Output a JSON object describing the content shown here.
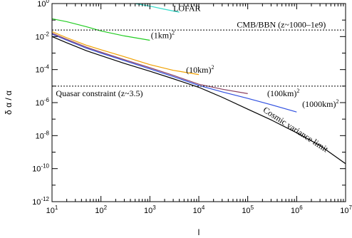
{
  "chart_data": {
    "type": "line",
    "xlabel": "l",
    "ylabel": "δ α / α",
    "xscale": "log",
    "yscale": "log",
    "xlim": [
      10,
      10000000
    ],
    "ylim": [
      1e-12,
      1
    ],
    "x_ticks": [
      {
        "value": 10,
        "mantissa": "10",
        "exponent": "1"
      },
      {
        "value": 100,
        "mantissa": "10",
        "exponent": "2"
      },
      {
        "value": 1000,
        "mantissa": "10",
        "exponent": "3"
      },
      {
        "value": 10000,
        "mantissa": "10",
        "exponent": "4"
      },
      {
        "value": 100000,
        "mantissa": "10",
        "exponent": "5"
      },
      {
        "value": 1000000,
        "mantissa": "10",
        "exponent": "6"
      },
      {
        "value": 10000000,
        "mantissa": "10",
        "exponent": "7"
      }
    ],
    "y_ticks": [
      {
        "value": 1,
        "mantissa": "10",
        "exponent": "0"
      },
      {
        "value": 0.01,
        "mantissa": "10",
        "exponent": "-2"
      },
      {
        "value": 0.0001,
        "mantissa": "10",
        "exponent": "-4"
      },
      {
        "value": 1e-06,
        "mantissa": "10",
        "exponent": "-6"
      },
      {
        "value": 1e-08,
        "mantissa": "10",
        "exponent": "-8"
      },
      {
        "value": 1e-10,
        "mantissa": "10",
        "exponent": "-10"
      },
      {
        "value": 1e-12,
        "mantissa": "10",
        "exponent": "-12"
      }
    ],
    "series": [
      {
        "color": "#000000",
        "x": [
          10,
          20,
          50,
          100,
          300,
          1000,
          3000,
          10000,
          30000,
          100000,
          300000,
          1000000,
          3000000,
          10000000
        ],
        "y": [
          0.01,
          0.0042,
          0.0014,
          0.0007,
          0.00024,
          8e-05,
          2.8e-05,
          8.5e-06,
          2.1e-06,
          4e-07,
          9e-08,
          1.5e-08,
          2.5e-09,
          2e-10
        ]
      },
      {
        "color": "#3050e0",
        "x": [
          10,
          20,
          50,
          100,
          300,
          1000,
          3000,
          10000,
          30000,
          100000,
          300000,
          1000000
        ],
        "y": [
          0.014,
          0.006,
          0.002,
          0.001,
          0.00035,
          0.00011,
          3.8e-05,
          1.1e-05,
          4.5e-06,
          1.8e-06,
          7.5e-07,
          2.7e-07
        ]
      },
      {
        "color": "#8b4060",
        "x": [
          10,
          20,
          50,
          100,
          300,
          1000,
          3000,
          10000,
          30000,
          100000
        ],
        "y": [
          0.016,
          0.0068,
          0.0023,
          0.00115,
          0.0004,
          0.00013,
          4.5e-05,
          1.3e-05,
          6.5e-06,
          3.5e-06
        ]
      },
      {
        "color": "#f0a000",
        "x": [
          10,
          20,
          50,
          100,
          300,
          1000,
          3000,
          10000
        ],
        "y": [
          0.02,
          0.0085,
          0.003,
          0.0016,
          0.0006,
          0.0002,
          9e-05,
          5e-05
        ]
      },
      {
        "color": "#22cc22",
        "x": [
          10,
          20,
          50,
          100,
          300,
          1000
        ],
        "y": [
          0.12,
          0.08,
          0.04,
          0.022,
          0.011,
          0.006
        ]
      },
      {
        "color": "#33ddcc",
        "x": [
          500,
          1000,
          2000,
          4000
        ],
        "y": [
          1,
          0.7,
          0.45,
          0.3
        ]
      }
    ],
    "hlines": [
      {
        "y": 0.025,
        "style": "dotted"
      },
      {
        "y": 1e-05,
        "style": "dotted"
      }
    ],
    "annotations": [
      {
        "id": "lofar",
        "text": "LOFAR",
        "sup": "",
        "x": 3000,
        "y": 0.35,
        "rotate": 0
      },
      {
        "id": "cmb",
        "text": "CMB/BBN (z~1000–1e9)",
        "sup": "",
        "x": 60000,
        "y": 0.035,
        "rotate": 0
      },
      {
        "id": "r1km",
        "text": "(1km)",
        "sup": "2",
        "x": 1050,
        "y": 0.008,
        "rotate": 0
      },
      {
        "id": "r10km",
        "text": "(10km)",
        "sup": "2",
        "x": 5500,
        "y": 6.5e-05,
        "rotate": 0
      },
      {
        "id": "r100km",
        "text": "(100km)",
        "sup": "2",
        "x": 250000,
        "y": 2.5e-06,
        "rotate": 0
      },
      {
        "id": "r1000km",
        "text": "(1000km)",
        "sup": "2",
        "x": 1300000,
        "y": 5.5e-07,
        "rotate": 0
      },
      {
        "id": "quasar",
        "text": "Quasar constraint  (z~3.5)",
        "sup": "",
        "x": 12,
        "y": 2.5e-06,
        "rotate": 0
      },
      {
        "id": "cosmic",
        "text": "Cosmic variance limit",
        "sup": "",
        "x": 200000,
        "y": 3e-07,
        "rotate": 33
      }
    ]
  }
}
